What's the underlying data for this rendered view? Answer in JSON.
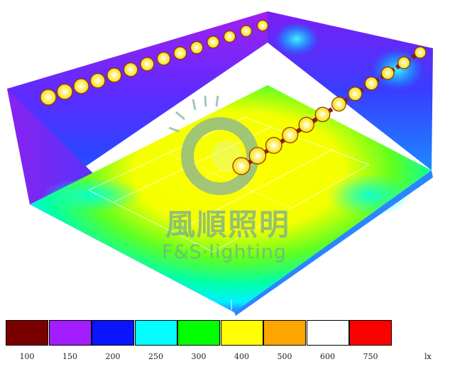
{
  "legend": {
    "unit": "lx",
    "levels": [
      {
        "label": "100",
        "color": "#7a0000"
      },
      {
        "label": "150",
        "color": "#a31dff"
      },
      {
        "label": "200",
        "color": "#0a14ff"
      },
      {
        "label": "250",
        "color": "#00ffff"
      },
      {
        "label": "300",
        "color": "#00ff00"
      },
      {
        "label": "400",
        "color": "#ffff00"
      },
      {
        "label": "500",
        "color": "#ffa500"
      },
      {
        "label": "600",
        "color": "#ffffff"
      },
      {
        "label": "750",
        "color": "#ff0000"
      }
    ]
  },
  "watermark": {
    "chinese": "風順照明",
    "english": "F&S·lighting"
  },
  "scene": {
    "left_wall_fixture_count": 14,
    "right_wall_fixture_count": 12
  }
}
